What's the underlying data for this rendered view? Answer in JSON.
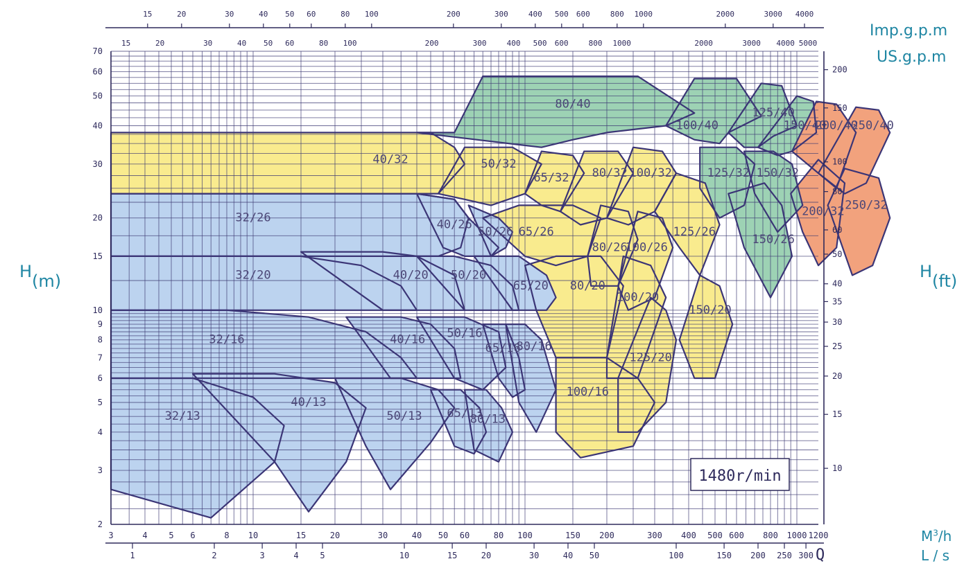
{
  "chart_data": {
    "type": "pump-selection-chart",
    "scale": "log-log",
    "grid": true,
    "speed_label": "1480r/min",
    "left_axis_label": {
      "main": "H",
      "sub": "(m)"
    },
    "right_axis_label": {
      "main": "H",
      "sub": "(ft)"
    },
    "top_axis1_unit": "Imp.g.p.m",
    "top_axis2_unit": "US.g.p.m",
    "bottom_axis1_unit": {
      "main": "M",
      "sup": "3",
      "rest": "/h"
    },
    "bottom_axis2_unit": "L / s",
    "flow_symbol": "Q",
    "xlim_m3h": [
      3,
      1200
    ],
    "ylim_m": [
      2,
      70
    ],
    "y_ticks_m": [
      "2",
      "3",
      "4",
      "5",
      "6",
      "7",
      "8",
      "9",
      "10",
      "15",
      "20",
      "30",
      "40",
      "50",
      "60",
      "70"
    ],
    "y_ticks_ft": [
      "10",
      "15",
      "20",
      "25",
      "30",
      "35",
      "40",
      "50",
      "60",
      "80",
      "100",
      "150",
      "200"
    ],
    "x_ticks_m3h": [
      "3",
      "4",
      "5",
      "6",
      "8",
      "10",
      "15",
      "20",
      "30",
      "40",
      "50",
      "60",
      "80",
      "100",
      "150",
      "200",
      "300",
      "400",
      "500",
      "600",
      "800",
      "1000",
      "1200"
    ],
    "x_ticks_ls": [
      "1",
      "2",
      "3",
      "4",
      "5",
      "10",
      "15",
      "20",
      "30",
      "40",
      "50",
      "100",
      "150",
      "200",
      "250",
      "300"
    ],
    "x_ticks_usgpm": [
      "15",
      "20",
      "30",
      "40",
      "50",
      "60",
      "80",
      "100",
      "200",
      "300",
      "400",
      "500",
      "600",
      "800",
      "1000",
      "2000",
      "3000",
      "4000",
      "5000"
    ],
    "x_ticks_impgpm": [
      "15",
      "20",
      "30",
      "40",
      "50",
      "60",
      "80",
      "100",
      "200",
      "300",
      "400",
      "500",
      "600",
      "800",
      "1000",
      "2000",
      "3000",
      "4000"
    ],
    "colors": {
      "blue": "#bcd3ef",
      "yellow": "#f9eb8e",
      "green": "#9dd2b4",
      "orange": "#f2a27d",
      "outline": "#3b3576",
      "grid": "#3d3a73"
    },
    "regions": [
      {
        "label": "80/40",
        "color": "green",
        "q": [
          55,
          70,
          260,
          420,
          330,
          200,
          150,
          115,
          40
        ],
        "h": [
          38,
          58,
          58,
          44,
          40,
          38,
          36,
          34,
          38
        ],
        "lq": 150,
        "lh": 47
      },
      {
        "label": "100/40",
        "color": "green",
        "q": [
          330,
          420,
          600,
          740,
          560,
          520,
          420
        ],
        "h": [
          40,
          57,
          57,
          43,
          38,
          35,
          36
        ],
        "lq": 430,
        "lh": 40
      },
      {
        "label": "125/40",
        "color": "green",
        "q": [
          560,
          740,
          880,
          1000,
          820,
          720,
          640
        ],
        "h": [
          38,
          55,
          54,
          40,
          37,
          34,
          34
        ],
        "lq": 820,
        "lh": 44
      },
      {
        "label": "150/40",
        "color": "green",
        "q": [
          720,
          1000,
          1150,
          1180,
          960,
          850
        ],
        "h": [
          34,
          50,
          48,
          38,
          33,
          32
        ],
        "lq": 1070,
        "lh": 40
      },
      {
        "label": "200/40",
        "color": "orange",
        "q": [
          960,
          1180,
          1400,
          1650,
          1400,
          1200
        ],
        "h": [
          33,
          48,
          47,
          38,
          25,
          28
        ],
        "lq": 1400,
        "lh": 40
      },
      {
        "label": "250/40",
        "color": "orange",
        "q": [
          1200,
          1650,
          2000,
          2200,
          1800,
          1500
        ],
        "h": [
          28,
          46,
          45,
          38,
          26,
          24
        ],
        "lq": 1900,
        "lh": 40
      },
      {
        "label": "200/32",
        "color": "orange",
        "q": [
          950,
          1200,
          1500,
          1400,
          1200,
          1050
        ],
        "h": [
          24,
          31,
          26,
          16,
          14,
          18
        ],
        "lq": 1250,
        "lh": 21
      },
      {
        "label": "250/32",
        "color": "orange",
        "q": [
          1300,
          1500,
          2000,
          2200,
          1900,
          1600
        ],
        "h": [
          22,
          29,
          27,
          20,
          14,
          13
        ],
        "lq": 1800,
        "lh": 22
      },
      {
        "label": "150/32",
        "color": "green",
        "q": [
          640,
          820,
          960,
          1050,
          850,
          700
        ],
        "h": [
          33,
          33,
          30,
          22,
          18,
          24
        ],
        "lq": 850,
        "lh": 28
      },
      {
        "label": "150/26",
        "color": "green",
        "q": [
          560,
          760,
          880,
          960,
          800,
          640
        ],
        "h": [
          24,
          26,
          22,
          15,
          11,
          16
        ],
        "lq": 820,
        "lh": 17
      },
      {
        "label": "125/32",
        "color": "green",
        "q": [
          440,
          600,
          700,
          640,
          520,
          440
        ],
        "h": [
          34,
          34,
          30,
          22,
          20,
          25
        ],
        "lq": 560,
        "lh": 28
      },
      {
        "label": "40/32",
        "color": "yellow",
        "q": [
          3,
          45,
          55,
          60,
          48,
          3
        ],
        "h": [
          38,
          38,
          34,
          30,
          24,
          24
        ],
        "lq": 32,
        "lh": 31
      },
      {
        "label": "50/32",
        "color": "yellow",
        "q": [
          48,
          60,
          90,
          115,
          100,
          75,
          60
        ],
        "h": [
          24,
          34,
          34,
          30,
          24,
          22,
          23
        ],
        "lq": 80,
        "lh": 30
      },
      {
        "label": "65/32",
        "color": "yellow",
        "q": [
          100,
          115,
          150,
          165,
          135,
          115
        ],
        "h": [
          24,
          33,
          32,
          28,
          21,
          22
        ],
        "lq": 125,
        "lh": 27
      },
      {
        "label": "80/32",
        "color": "yellow",
        "q": [
          135,
          165,
          220,
          250,
          200,
          160
        ],
        "h": [
          21,
          33,
          33,
          28,
          20,
          19
        ],
        "lq": 205,
        "lh": 28
      },
      {
        "label": "100/32",
        "color": "yellow",
        "q": [
          200,
          250,
          320,
          360,
          300,
          240
        ],
        "h": [
          20,
          34,
          33,
          28,
          21,
          19
        ],
        "lq": 290,
        "lh": 28
      },
      {
        "label": "125/26",
        "color": "yellow",
        "q": [
          300,
          360,
          460,
          520,
          440,
          370
        ],
        "h": [
          21,
          28,
          26,
          19,
          13,
          16
        ],
        "lq": 420,
        "lh": 18
      },
      {
        "label": "65/26",
        "color": "yellow",
        "q": [
          70,
          95,
          150,
          190,
          170,
          130,
          100
        ],
        "h": [
          20,
          22,
          22,
          20,
          15,
          14,
          15
        ],
        "lq": 110,
        "lh": 18
      },
      {
        "label": "80/26",
        "color": "yellow",
        "q": [
          170,
          190,
          240,
          260,
          220,
          175
        ],
        "h": [
          15,
          22,
          21,
          17,
          12,
          12
        ],
        "lq": 205,
        "lh": 16
      },
      {
        "label": "100/26",
        "color": "yellow",
        "q": [
          220,
          260,
          320,
          350,
          300,
          240
        ],
        "h": [
          12,
          21,
          20,
          16,
          11,
          10
        ],
        "lq": 280,
        "lh": 16
      },
      {
        "label": "80/20",
        "color": "yellow",
        "q": [
          100,
          130,
          190,
          230,
          200,
          130,
          110
        ],
        "h": [
          14,
          15,
          15,
          12,
          7,
          7,
          10
        ],
        "lq": 170,
        "lh": 12
      },
      {
        "label": "100/20",
        "color": "yellow",
        "q": [
          200,
          230,
          290,
          330,
          260,
          200
        ],
        "h": [
          7,
          15,
          14,
          11,
          6,
          6
        ],
        "lq": 260,
        "lh": 11
      },
      {
        "label": "150/20",
        "color": "yellow",
        "q": [
          370,
          440,
          520,
          580,
          500,
          420
        ],
        "h": [
          8,
          13,
          12,
          9,
          6,
          6
        ],
        "lq": 480,
        "lh": 10
      },
      {
        "label": "125/20",
        "color": "yellow",
        "q": [
          220,
          290,
          330,
          360,
          330,
          260,
          220
        ],
        "h": [
          6,
          11,
          10,
          8,
          5,
          4,
          4
        ],
        "lq": 290,
        "lh": 7
      },
      {
        "label": "100/16",
        "color": "yellow",
        "q": [
          130,
          200,
          260,
          300,
          250,
          160,
          130
        ],
        "h": [
          7,
          7,
          6,
          5,
          3.6,
          3.3,
          4
        ],
        "lq": 170,
        "lh": 5.4
      },
      {
        "label": "32/26",
        "color": "blue",
        "q": [
          3,
          40,
          55,
          62,
          58,
          48,
          3
        ],
        "h": [
          24,
          24,
          23,
          20,
          16,
          15,
          15
        ],
        "lq": 10,
        "lh": 20
      },
      {
        "label": "40/26",
        "color": "blue",
        "q": [
          40,
          55,
          62,
          80,
          75,
          60,
          50
        ],
        "h": [
          24,
          23,
          20,
          16,
          15,
          15,
          16
        ],
        "lq": 55,
        "lh": 19
      },
      {
        "label": "50/26",
        "color": "blue",
        "q": [
          62,
          80,
          90,
          85,
          75
        ],
        "h": [
          22,
          20,
          18,
          16,
          15
        ],
        "lq": 78,
        "lh": 18
      },
      {
        "label": "32/20",
        "color": "blue",
        "q": [
          3,
          15,
          25,
          35,
          40,
          26,
          3
        ],
        "h": [
          15,
          15,
          14,
          12,
          10,
          10,
          10
        ],
        "lq": 10,
        "lh": 13
      },
      {
        "label": "40/20",
        "color": "blue",
        "q": [
          15,
          30,
          40,
          55,
          60,
          50,
          40,
          30
        ],
        "h": [
          15.5,
          15.5,
          15,
          13,
          10,
          10,
          10,
          10
        ],
        "lq": 38,
        "lh": 13
      },
      {
        "label": "50/20",
        "color": "blue",
        "q": [
          40,
          55,
          75,
          90,
          95,
          80,
          60
        ],
        "h": [
          15,
          15,
          14,
          12,
          10,
          10,
          10
        ],
        "lq": 62,
        "lh": 13
      },
      {
        "label": "65/20",
        "color": "blue",
        "q": [
          65,
          95,
          120,
          130,
          120,
          100,
          90
        ],
        "h": [
          15,
          15,
          13,
          11,
          10,
          10,
          10
        ],
        "lq": 105,
        "lh": 12
      },
      {
        "label": "32/16",
        "color": "blue",
        "q": [
          3,
          8,
          16,
          26,
          35,
          40,
          22,
          3
        ],
        "h": [
          10,
          10,
          9.5,
          8.5,
          7,
          6,
          6,
          6
        ],
        "lq": 8,
        "lh": 8
      },
      {
        "label": "40/16",
        "color": "blue",
        "q": [
          22,
          35,
          45,
          55,
          58,
          40,
          32
        ],
        "h": [
          9.5,
          9.5,
          9,
          7.5,
          6,
          6,
          6
        ],
        "lq": 37,
        "lh": 8
      },
      {
        "label": "50/16",
        "color": "blue",
        "q": [
          40,
          60,
          80,
          85,
          70,
          55
        ],
        "h": [
          9.5,
          9.5,
          8.5,
          6.5,
          5.5,
          6
        ],
        "lq": 60,
        "lh": 8.4
      },
      {
        "label": "65/16",
        "color": "blue",
        "q": [
          70,
          85,
          95,
          100,
          90,
          80
        ],
        "h": [
          9,
          9,
          7,
          5.5,
          5.2,
          6
        ],
        "lq": 83,
        "lh": 7.5
      },
      {
        "label": "80/16",
        "color": "blue",
        "q": [
          85,
          100,
          115,
          130,
          110,
          95
        ],
        "h": [
          9,
          9,
          8,
          5.5,
          4,
          5
        ],
        "lq": 108,
        "lh": 7.6
      },
      {
        "label": "32/13",
        "color": "blue",
        "q": [
          3,
          6,
          10,
          13,
          12,
          7,
          3
        ],
        "h": [
          6,
          6,
          5.2,
          4.2,
          3.2,
          2.1,
          2.6
        ],
        "lq": 5.5,
        "lh": 4.5
      },
      {
        "label": "40/13",
        "color": "blue",
        "q": [
          6,
          12,
          20,
          26,
          22,
          16,
          12
        ],
        "h": [
          6.2,
          6.2,
          5.8,
          4.8,
          3.2,
          2.2,
          3.2
        ],
        "lq": 16,
        "lh": 5
      },
      {
        "label": "50/13",
        "color": "blue",
        "q": [
          20,
          35,
          48,
          55,
          45,
          32,
          26
        ],
        "h": [
          6,
          6,
          5.5,
          4.8,
          3.7,
          2.6,
          3.6
        ],
        "lq": 36,
        "lh": 4.5
      },
      {
        "label": "65/13",
        "color": "blue",
        "q": [
          45,
          58,
          68,
          72,
          65,
          55
        ],
        "h": [
          5.5,
          5.5,
          4.8,
          4,
          3.4,
          3.6
        ],
        "lq": 60,
        "lh": 4.6
      },
      {
        "label": "80/13",
        "color": "blue",
        "q": [
          60,
          72,
          82,
          90,
          80,
          65
        ],
        "h": [
          5.5,
          5.5,
          4.8,
          4,
          3.2,
          3.5
        ],
        "lq": 73,
        "lh": 4.4
      }
    ]
  }
}
